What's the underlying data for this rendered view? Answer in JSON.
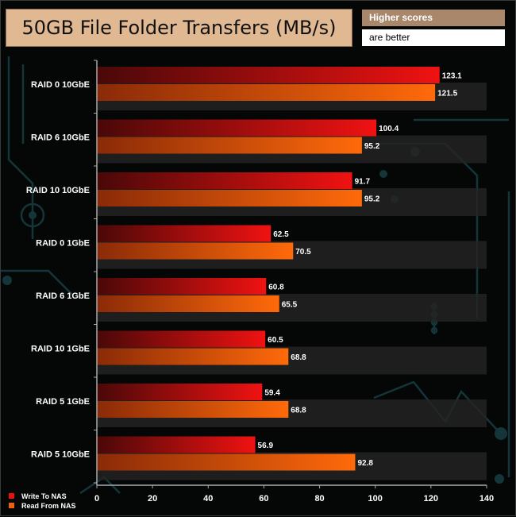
{
  "title": "50GB File Folder Transfers (MB/s)",
  "note": {
    "line1": "Higher scores",
    "line2": "are better"
  },
  "colors": {
    "write": "#e81010",
    "read": "#f0600c",
    "band": "#232323"
  },
  "chart_data": {
    "type": "bar",
    "orientation": "horizontal",
    "categories": [
      "RAID 0 10GbE",
      "RAID 6 10GbE",
      "RAID 10 10GbE",
      "RAID 0 1GbE",
      "RAID 6 1GbE",
      "RAID 10 1GbE",
      "RAID 5 1GbE",
      "RAID 5 10GbE"
    ],
    "series": [
      {
        "name": "Write To NAS",
        "values": [
          123.1,
          100.4,
          91.7,
          62.5,
          60.8,
          60.5,
          59.4,
          56.9
        ]
      },
      {
        "name": "Read From NAS",
        "values": [
          121.5,
          95.2,
          95.2,
          70.5,
          65.5,
          68.8,
          68.8,
          92.8
        ]
      }
    ],
    "xlim": [
      0,
      140
    ],
    "xticks": [
      0,
      20,
      40,
      60,
      80,
      100,
      120,
      140
    ],
    "legend": "bottom-left"
  }
}
